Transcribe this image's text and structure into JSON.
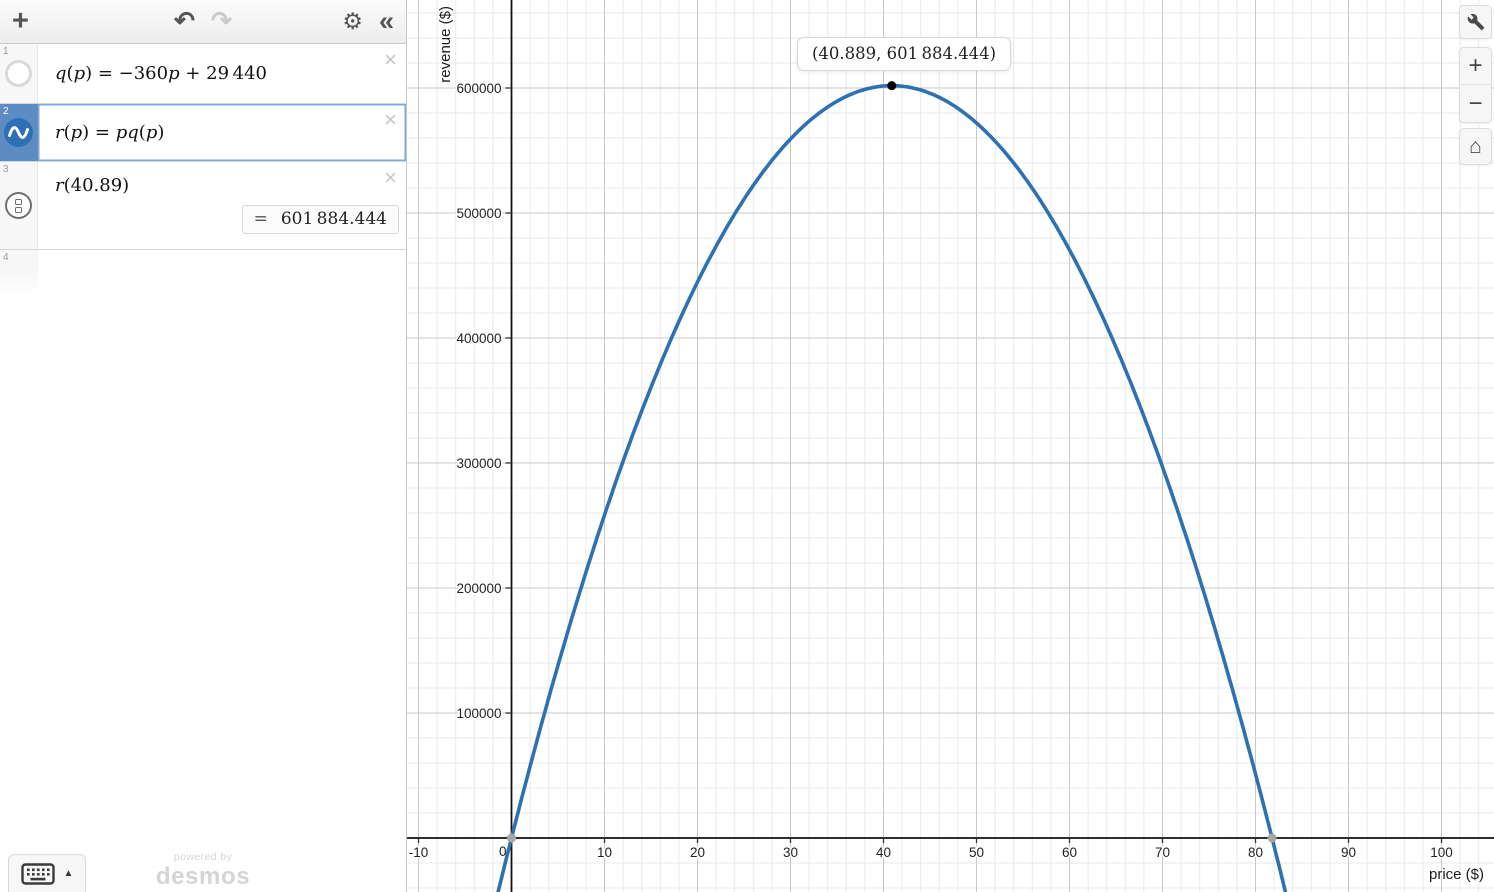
{
  "app": {
    "title": "Desmos Graphing Calculator"
  },
  "toolbar": {
    "add_glyph": "+",
    "undo_glyph": "↶",
    "redo_glyph": "↷",
    "settings_glyph": "⚙",
    "collapse_glyph": "«"
  },
  "expressions": {
    "delete_glyph": "×",
    "rows": [
      {
        "number": "1",
        "icon": "hidden-plot-circle",
        "text": "q(p) = −360p + 29 440",
        "tokens": [
          [
            "i",
            "q"
          ],
          [
            "n",
            "("
          ],
          [
            "i",
            "p"
          ],
          [
            "n",
            ") = −360"
          ],
          [
            "i",
            "p"
          ],
          [
            "n",
            " + 29 440"
          ]
        ]
      },
      {
        "number": "2",
        "icon": "plotted-curve-wave",
        "selected": true,
        "text": "r(p) = pq(p)",
        "tokens": [
          [
            "i",
            "r"
          ],
          [
            "n",
            "("
          ],
          [
            "i",
            "p"
          ],
          [
            "n",
            ") = "
          ],
          [
            "i",
            "p"
          ],
          [
            "i",
            "q"
          ],
          [
            "n",
            "("
          ],
          [
            "i",
            "p"
          ],
          [
            "n",
            ")"
          ]
        ]
      },
      {
        "number": "3",
        "icon": "evaluation-circle",
        "text": "r(40.89)",
        "tokens": [
          [
            "i",
            "r"
          ],
          [
            "n",
            "(40.89)"
          ]
        ],
        "result": {
          "equals": "=",
          "value": "601 884.444"
        }
      },
      {
        "number": "4",
        "empty": true
      }
    ]
  },
  "keyboard": {
    "toggle_glyph": "▲"
  },
  "watermark": {
    "line1": "powered by",
    "line2": "desmos"
  },
  "graph": {
    "tooltip": "(40.889, 601 884.444)",
    "x_axis_label": "price ($)",
    "y_axis_label": "revenue ($)",
    "controls": {
      "zoom_in_glyph": "+",
      "zoom_out_glyph": "−",
      "home_glyph": "⌂"
    }
  },
  "chart_data": {
    "type": "line",
    "title": "",
    "xlabel": "price ($)",
    "ylabel": "revenue ($)",
    "x_ticks": [
      -10,
      0,
      10,
      20,
      30,
      40,
      50,
      60,
      70,
      80,
      90,
      100
    ],
    "y_ticks": [
      100000,
      200000,
      300000,
      400000,
      500000,
      600000
    ],
    "x_minor_step": 2,
    "y_minor_step": 20000,
    "xlim": [
      -11.2,
      105.8
    ],
    "ylim": [
      -43200,
      670400
    ],
    "grid": true,
    "series": [
      {
        "name": "q(p) = −360p + 29440",
        "type": "function",
        "visible": false,
        "coefficients": {
          "a": 0,
          "b": -360,
          "c": 29440
        }
      },
      {
        "name": "r(p) = pq(p) = −360p² + 29440p",
        "type": "function",
        "visible": true,
        "color": "#2d70b3",
        "coefficients": {
          "a": -360,
          "b": 29440,
          "c": 0
        }
      }
    ],
    "points": [
      {
        "x": 40.889,
        "y": 601884.444,
        "role": "maximum",
        "color": "#000000",
        "label": "(40.889, 601884.444)"
      },
      {
        "x": 0,
        "y": 0,
        "role": "x-intercept",
        "color": "#a6a6a6"
      },
      {
        "x": 81.778,
        "y": 0,
        "role": "x-intercept",
        "color": "#a6a6a6"
      }
    ],
    "evaluation": {
      "input": "r(40.89)",
      "output": 601884.444
    }
  }
}
